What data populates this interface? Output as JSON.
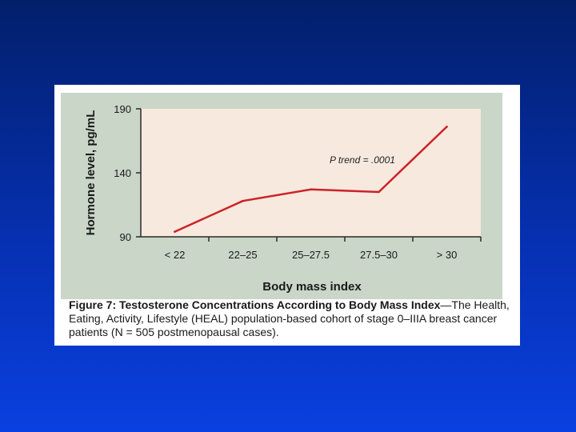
{
  "caption": {
    "title": "Figure 7: Testosterone Concentrations According to Body Mass Index",
    "body": "—The Health, Eating, Activity, Lifestyle (HEAL) population-based cohort of stage 0–IIIA breast cancer patients (N = 505 postmenopausal cases)."
  },
  "chart_data": {
    "type": "line",
    "categories": [
      "< 22",
      "22–25",
      "25–27.5",
      "27.5–30",
      "> 30"
    ],
    "series": [
      {
        "values": [
          94,
          118,
          127,
          125,
          176
        ]
      }
    ],
    "ylim": [
      90,
      190
    ],
    "yticks": [
      90,
      140,
      190
    ],
    "xlabel": "Body mass index",
    "ylabel": "Hormone level, pg/mL",
    "annotation": "P trend = .0001",
    "grid": false,
    "colors": {
      "line": "#cc2229",
      "plot_bg": "#f7e9dd",
      "panel_bg": "#c9d6c8",
      "axis": "#2a2a2a"
    }
  }
}
